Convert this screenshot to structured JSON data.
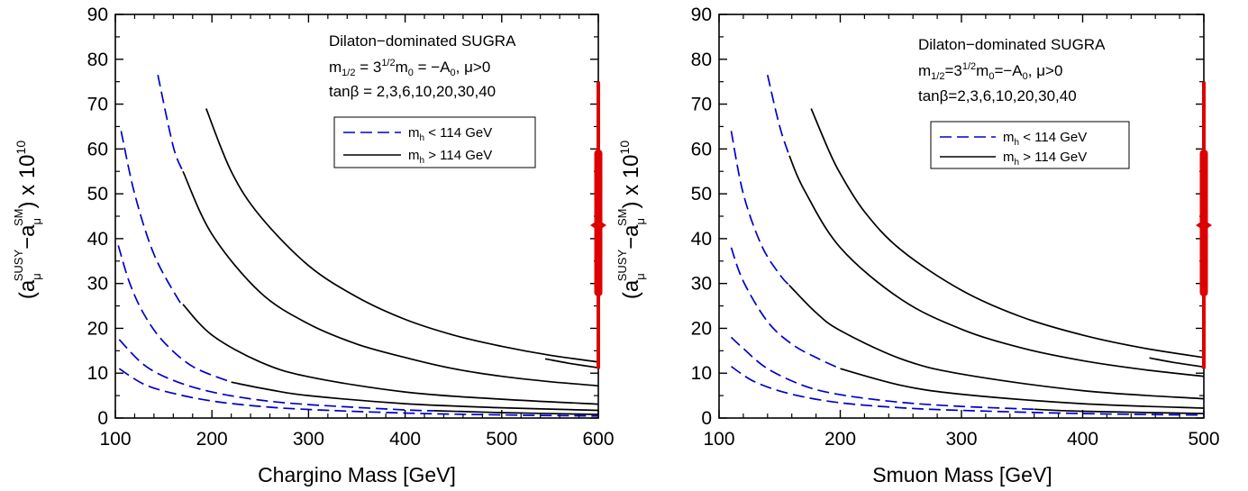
{
  "chart_data": [
    {
      "type": "line",
      "xlabel": "Chargino Mass  [GeV]",
      "ylabel": {
        "base": "(a",
        "sub1": "μ",
        "sup1": "SUSY",
        "mid": "−a",
        "sub2": "μ",
        "sup2": "SM",
        "tail": ") x 10",
        "sup3": "10"
      },
      "xlim": [
        100,
        600
      ],
      "ylim": [
        0,
        90
      ],
      "xticks": [
        "100",
        "200",
        "300",
        "400",
        "500",
        "600"
      ],
      "yticks": [
        "0",
        "10",
        "20",
        "30",
        "40",
        "50",
        "60",
        "70",
        "80",
        "90"
      ],
      "annotation": {
        "line1": "Dilaton−dominated SUGRA",
        "line2": {
          "a": "m",
          "a_sub": "1/2",
          "b": " = 3",
          "b_sup": "1/2",
          "c": "m",
          "c_sub": "0",
          "d": " = −A",
          "d_sub": "0",
          "e": ",  μ>0"
        },
        "line3": "tanβ = 2,3,6,10,20,30,40"
      },
      "legend": [
        {
          "label_main": "m",
          "label_sub": "h",
          "label_rest": " < 114 GeV",
          "style": "dashed",
          "color": "#0000cc"
        },
        {
          "label_main": "m",
          "label_sub": "h",
          "label_rest": " > 114 GeV",
          "style": "solid",
          "color": "#000000"
        }
      ],
      "series": [
        {
          "x": [
            104,
            130,
            160,
            200,
            250,
            300,
            400,
            500,
            600
          ],
          "y": [
            11.0,
            7.5,
            5.5,
            3.8,
            2.6,
            1.9,
            1.1,
            0.7,
            0.45
          ],
          "split_x": 600
        },
        {
          "x": [
            104,
            130,
            160,
            200,
            250,
            300,
            400,
            500,
            600
          ],
          "y": [
            17.5,
            11.8,
            8.4,
            5.8,
            4.0,
            3.0,
            1.8,
            1.2,
            0.8
          ],
          "split_x": 430
        },
        {
          "x": [
            103,
            115,
            130,
            150,
            180,
            220,
            260,
            300,
            400,
            500,
            600
          ],
          "y": [
            38.5,
            30.0,
            23.0,
            17.0,
            11.5,
            8.0,
            6.3,
            5.0,
            3.2,
            2.3,
            1.7
          ],
          "split_x": 220
        },
        {
          "x": [
            106,
            120,
            140,
            165,
            200,
            250,
            300,
            400,
            500,
            600
          ],
          "y": [
            64.0,
            50.0,
            36.5,
            26.5,
            18.5,
            12.5,
            9.2,
            5.8,
            4.2,
            3.1
          ],
          "split_x": 170
        },
        {
          "x": [
            144,
            160,
            170,
            200,
            250,
            300,
            350,
            400,
            450,
            500,
            550,
            600
          ],
          "y": [
            76.5,
            60.5,
            55.0,
            41.0,
            28.0,
            21.0,
            16.5,
            13.5,
            11.0,
            9.3,
            8.1,
            7.2
          ],
          "split_x": 170
        },
        {
          "x": [
            194,
            220,
            250,
            300,
            350,
            400,
            450,
            500,
            550,
            600
          ],
          "y": [
            69.0,
            55.0,
            45.0,
            34.0,
            27.0,
            22.0,
            18.5,
            16.0,
            14.0,
            12.5
          ],
          "split_x": 194
        },
        {
          "x": [
            545,
            570,
            600
          ],
          "y": [
            13.2,
            12.2,
            11.2
          ],
          "split_x": 545
        }
      ],
      "measurement": {
        "x": 600,
        "center": 43.0,
        "inner": [
          28.0,
          59.0
        ],
        "outer": [
          11.0,
          75.0
        ],
        "color": "#dd0000"
      }
    },
    {
      "type": "line",
      "xlabel": "Smuon Mass  [GeV]",
      "ylabel": {
        "base": "(a",
        "sub1": "μ",
        "sup1": "SUSY",
        "mid": "−a",
        "sub2": "μ",
        "sup2": "SM",
        "tail": ") x 10",
        "sup3": "10"
      },
      "xlim": [
        100,
        500
      ],
      "ylim": [
        0,
        90
      ],
      "xticks": [
        "100",
        "200",
        "300",
        "400",
        "500"
      ],
      "yticks": [
        "0",
        "10",
        "20",
        "30",
        "40",
        "50",
        "60",
        "70",
        "80",
        "90"
      ],
      "annotation": {
        "line1": "Dilaton−dominated SUGRA",
        "line2": {
          "a": "m",
          "a_sub": "1/2",
          "b": "=3",
          "b_sup": "1/2",
          "c": "m",
          "c_sub": "0",
          "d": "=−A",
          "d_sub": "0",
          "e": ",  μ>0"
        },
        "line3": "tanβ=2,3,6,10,20,30,40"
      },
      "legend": [
        {
          "label_main": "m",
          "label_sub": "h",
          "label_rest": " < 114 GeV",
          "style": "dashed",
          "color": "#0000cc"
        },
        {
          "label_main": "m",
          "label_sub": "h",
          "label_rest": " > 114 GeV",
          "style": "solid",
          "color": "#000000"
        }
      ],
      "series": [
        {
          "x": [
            110,
            130,
            160,
            200,
            250,
            300,
            400,
            500
          ],
          "y": [
            11.5,
            8.0,
            5.3,
            3.4,
            2.3,
            1.7,
            1.0,
            0.65
          ],
          "split_x": 500
        },
        {
          "x": [
            110,
            120,
            140,
            170,
            200,
            250,
            300,
            400,
            500
          ],
          "y": [
            18.0,
            15.5,
            11.0,
            7.2,
            5.2,
            3.5,
            2.6,
            1.5,
            1.0
          ],
          "split_x": 360
        },
        {
          "x": [
            110,
            120,
            140,
            160,
            180,
            200,
            250,
            300,
            400,
            500
          ],
          "y": [
            38.0,
            30.5,
            21.5,
            16.5,
            13.5,
            11.0,
            7.3,
            5.3,
            3.2,
            2.2
          ],
          "split_x": 200
        },
        {
          "x": [
            110,
            120,
            135,
            150,
            160,
            180,
            200,
            250,
            300,
            400,
            500
          ],
          "y": [
            64.0,
            50.0,
            38.5,
            32.0,
            29.0,
            23.5,
            19.5,
            13.2,
            9.8,
            6.1,
            4.3
          ],
          "split_x": 158
        },
        {
          "x": [
            140,
            150,
            158,
            170,
            200,
            250,
            300,
            350,
            400,
            450,
            500
          ],
          "y": [
            76.5,
            65.0,
            58.5,
            51.0,
            38.0,
            26.5,
            19.8,
            15.6,
            12.8,
            10.8,
            9.3
          ],
          "split_x": 158
        },
        {
          "x": [
            176,
            190,
            200,
            220,
            250,
            300,
            350,
            400,
            450,
            500
          ],
          "y": [
            69.0,
            60.0,
            54.5,
            46.0,
            37.5,
            28.5,
            22.5,
            18.5,
            15.6,
            13.5
          ],
          "split_x": 176
        },
        {
          "x": [
            455,
            475,
            500
          ],
          "y": [
            13.4,
            12.4,
            11.4
          ],
          "split_x": 455
        }
      ],
      "measurement": {
        "x": 500,
        "center": 43.0,
        "inner": [
          28.0,
          59.0
        ],
        "outer": [
          11.0,
          75.0
        ],
        "color": "#dd0000"
      }
    }
  ]
}
